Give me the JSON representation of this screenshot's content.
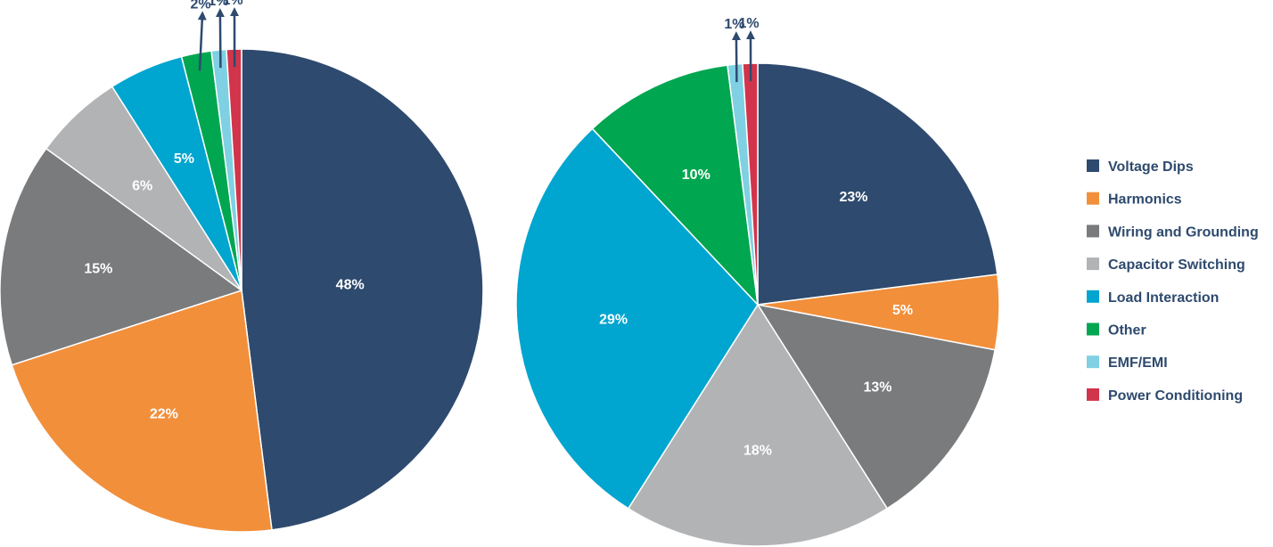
{
  "chart_data": [
    {
      "type": "pie",
      "categories": [
        "Voltage Dips",
        "Harmonics",
        "Wiring and Grounding",
        "Capacitor Switching",
        "Load Interaction",
        "Other",
        "EMF/EMI",
        "Power Conditioning"
      ],
      "values": [
        48,
        22,
        15,
        6,
        5,
        2,
        1,
        1
      ],
      "labels": [
        "48%",
        "22%",
        "15%",
        "6%",
        "5%",
        "2%",
        "1%",
        "1%"
      ],
      "title": ""
    },
    {
      "type": "pie",
      "categories": [
        "Voltage Dips",
        "Harmonics",
        "Wiring and Grounding",
        "Capacitor Switching",
        "Load Interaction",
        "Other",
        "EMF/EMI",
        "Power Conditioning"
      ],
      "values": [
        23,
        5,
        13,
        18,
        29,
        10,
        1,
        1
      ],
      "labels": [
        "23%",
        "5%",
        "13%",
        "18%",
        "29%",
        "10%",
        "1%",
        "1%"
      ],
      "title": ""
    }
  ],
  "legend": {
    "placement": "right",
    "items": [
      {
        "label": "Voltage Dips",
        "color": "#2e4a6e"
      },
      {
        "label": "Harmonics",
        "color": "#f28f3b"
      },
      {
        "label": "Wiring and Grounding",
        "color": "#7a7b7d"
      },
      {
        "label": "Capacitor Switching",
        "color": "#b2b3b5"
      },
      {
        "label": "Load Interaction",
        "color": "#00a5d0"
      },
      {
        "label": "Other",
        "color": "#00a650"
      },
      {
        "label": "EMF/EMI",
        "color": "#7fd0e2"
      },
      {
        "label": "Power Conditioning",
        "color": "#d1344b"
      }
    ]
  }
}
